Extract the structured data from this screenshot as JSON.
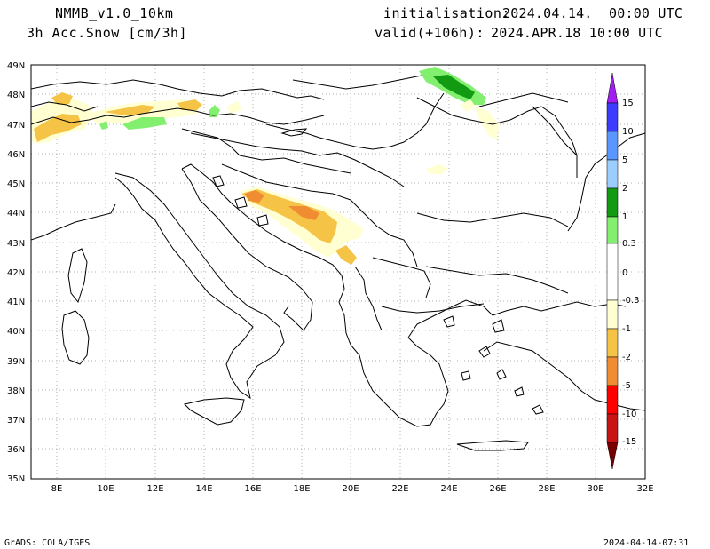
{
  "header": {
    "model": "NMMB_v1.0_10km",
    "variable": "3h Acc.Snow [cm/3h]",
    "init_label": "initialisation:",
    "init_value": "2024.04.14.  00:00 UTC",
    "valid_label": "valid(+106h):",
    "valid_value": "2024.APR.18 10:00 UTC"
  },
  "footer": {
    "source": "GrADS: COLA/IGES",
    "timestamp": "2024-04-14-07:31"
  },
  "axes": {
    "lat_labels": [
      "49N",
      "48N",
      "47N",
      "46N",
      "45N",
      "44N",
      "43N",
      "42N",
      "41N",
      "40N",
      "39N",
      "38N",
      "37N",
      "36N",
      "35N"
    ],
    "lon_labels": [
      "8E",
      "10E",
      "12E",
      "14E",
      "16E",
      "18E",
      "20E",
      "22E",
      "24E",
      "26E",
      "28E",
      "30E",
      "32E"
    ],
    "lat_range": [
      35,
      49
    ],
    "lon_range": [
      7,
      32
    ],
    "grid": "dotted"
  },
  "colorbar": {
    "labels": [
      "15",
      "10",
      "5",
      "2",
      "1",
      "0.3",
      "0",
      "-0.3",
      "-1",
      "-2",
      "-5",
      "-10",
      "-15"
    ],
    "colors": [
      "#a020f0",
      "#3c3cff",
      "#5a96ff",
      "#9ccdff",
      "#129b12",
      "#82ef6e",
      "#ffffff",
      "#ffffd2",
      "#f5c346",
      "#f08c32",
      "#ff0000",
      "#c81414",
      "#780000"
    ]
  }
}
